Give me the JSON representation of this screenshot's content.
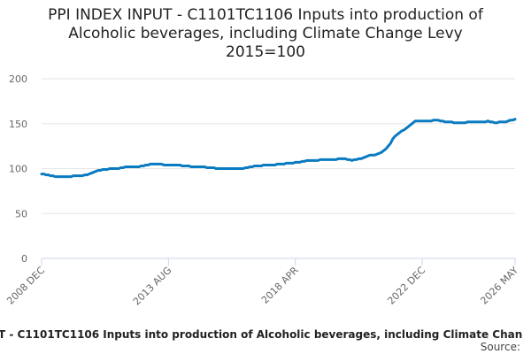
{
  "chart_data": {
    "type": "line",
    "title_lines": [
      "PPI INDEX INPUT - C1101TC1106 Inputs into production of",
      "Alcoholic beverages, including Climate Change Levy",
      "2015=100"
    ],
    "caption": "T - C1101TC1106 Inputs into production of Alcoholic beverages, including Climate Chan",
    "source": "Source:",
    "color": "#0a7bc1",
    "grid": true,
    "ylim": [
      0,
      200
    ],
    "yticks": [
      0,
      50,
      100,
      150,
      200
    ],
    "categories": [
      "2008 DEC",
      null,
      null,
      null,
      null,
      null,
      null,
      null,
      null,
      null,
      null,
      null,
      null,
      null,
      null,
      null,
      null,
      null,
      null,
      null,
      null,
      null,
      null,
      null,
      null,
      null,
      null,
      null,
      null,
      null,
      null,
      null,
      null,
      null,
      null,
      null,
      null,
      null,
      null,
      null,
      null,
      null,
      null,
      null,
      null,
      null,
      null,
      null,
      null,
      null,
      null,
      null,
      null,
      null,
      null,
      null,
      "2013 AUG",
      null,
      null,
      null,
      null,
      null,
      null,
      null,
      null,
      null,
      null,
      null,
      null,
      null,
      null,
      null,
      null,
      null,
      null,
      null,
      null,
      null,
      null,
      null,
      null,
      null,
      null,
      null,
      null,
      null,
      null,
      null,
      null,
      null,
      null,
      null,
      null,
      null,
      null,
      null,
      null,
      null,
      null,
      null,
      null,
      null,
      null,
      null,
      null,
      null,
      null,
      null,
      null,
      null,
      null,
      null,
      "2018 APR",
      null,
      null,
      null,
      null,
      null,
      null,
      null,
      null,
      null,
      null,
      null,
      null,
      null,
      null,
      null,
      null,
      null,
      null,
      null,
      null,
      null,
      null,
      null,
      null,
      null,
      null,
      null,
      null,
      null,
      null,
      null,
      null,
      null,
      null,
      null,
      null,
      null,
      null,
      null,
      null,
      null,
      null,
      null,
      null,
      null,
      null,
      null,
      null,
      null,
      null,
      null,
      null,
      null,
      null,
      null,
      "2022 DEC",
      null,
      null,
      null,
      null,
      null,
      null,
      null,
      null,
      null,
      null,
      null,
      null,
      null,
      null,
      null,
      null,
      null,
      null,
      null,
      null,
      null,
      null,
      null,
      null,
      null,
      null,
      null,
      null,
      null,
      null,
      null,
      null,
      null,
      null,
      null,
      null,
      null,
      null,
      null,
      null,
      "2026 MAY"
    ],
    "values": [
      94,
      94,
      93,
      93,
      92,
      92,
      91,
      91,
      91,
      91,
      91,
      91,
      91,
      91,
      92,
      92,
      92,
      92,
      92,
      93,
      93,
      94,
      95,
      96,
      97,
      98,
      98,
      99,
      99,
      99,
      100,
      100,
      100,
      100,
      100,
      101,
      101,
      102,
      102,
      102,
      102,
      102,
      102,
      102,
      103,
      103,
      104,
      104,
      105,
      105,
      105,
      105,
      105,
      105,
      104,
      104,
      104,
      104,
      104,
      104,
      104,
      104,
      103,
      103,
      103,
      103,
      102,
      102,
      102,
      102,
      102,
      102,
      102,
      101,
      101,
      101,
      101,
      100,
      100,
      100,
      100,
      100,
      100,
      100,
      100,
      100,
      100,
      100,
      100,
      100,
      101,
      101,
      102,
      102,
      103,
      103,
      103,
      103,
      104,
      104,
      104,
      104,
      104,
      104,
      105,
      105,
      105,
      105,
      106,
      106,
      106,
      106,
      107,
      107,
      107,
      108,
      108,
      109,
      109,
      109,
      109,
      109,
      109,
      110,
      110,
      110,
      110,
      110,
      110,
      110,
      110,
      111,
      111,
      111,
      111,
      110,
      110,
      109,
      110,
      110,
      111,
      111,
      112,
      113,
      114,
      115,
      115,
      115,
      116,
      117,
      118,
      120,
      122,
      125,
      128,
      133,
      136,
      138,
      140,
      142,
      143,
      145,
      147,
      149,
      151,
      153,
      153,
      153,
      153,
      153,
      153,
      153,
      153,
      154,
      154,
      154,
      153,
      153,
      152,
      152,
      152,
      152,
      151,
      151,
      151,
      151,
      151,
      151,
      152,
      152,
      152,
      152,
      152,
      152,
      152,
      152,
      152,
      153,
      152,
      152,
      151,
      151,
      152,
      152,
      152,
      152,
      153,
      154,
      154,
      155
    ]
  }
}
